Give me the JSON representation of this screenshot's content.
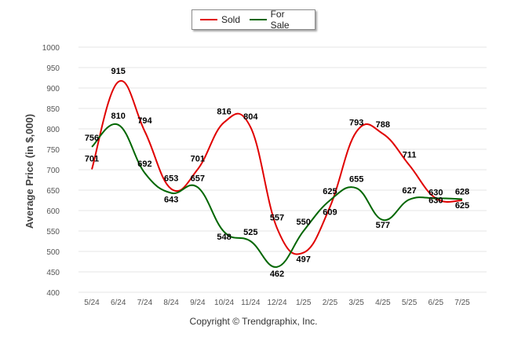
{
  "chart_data": {
    "type": "line",
    "categories": [
      "5/24",
      "6/24",
      "7/24",
      "8/24",
      "9/24",
      "10/24",
      "11/24",
      "12/24",
      "1/25",
      "2/25",
      "3/25",
      "4/25",
      "5/25",
      "6/25",
      "7/25"
    ],
    "series": [
      {
        "name": "Sold",
        "color": "#e00000",
        "values": [
          701,
          915,
          794,
          653,
          701,
          816,
          804,
          557,
          497,
          609,
          793,
          788,
          711,
          630,
          625
        ]
      },
      {
        "name": "For Sale",
        "color": "#006600",
        "values": [
          756,
          810,
          692,
          643,
          657,
          548,
          525,
          462,
          550,
          625,
          655,
          577,
          627,
          630,
          628
        ]
      }
    ],
    "ylabel": "Average Price (in $,000)",
    "xlabel": "",
    "ylim": [
      400,
      1000
    ],
    "yticks": [
      400,
      450,
      500,
      550,
      600,
      650,
      700,
      750,
      800,
      850,
      900,
      950,
      1000
    ],
    "grid": true,
    "legend_position": "top-center"
  },
  "legend": [
    {
      "label": "Sold",
      "color": "#e00000"
    },
    {
      "label": "For Sale",
      "color": "#006600"
    }
  ],
  "footer": "Copyright © Trendgraphix, Inc."
}
